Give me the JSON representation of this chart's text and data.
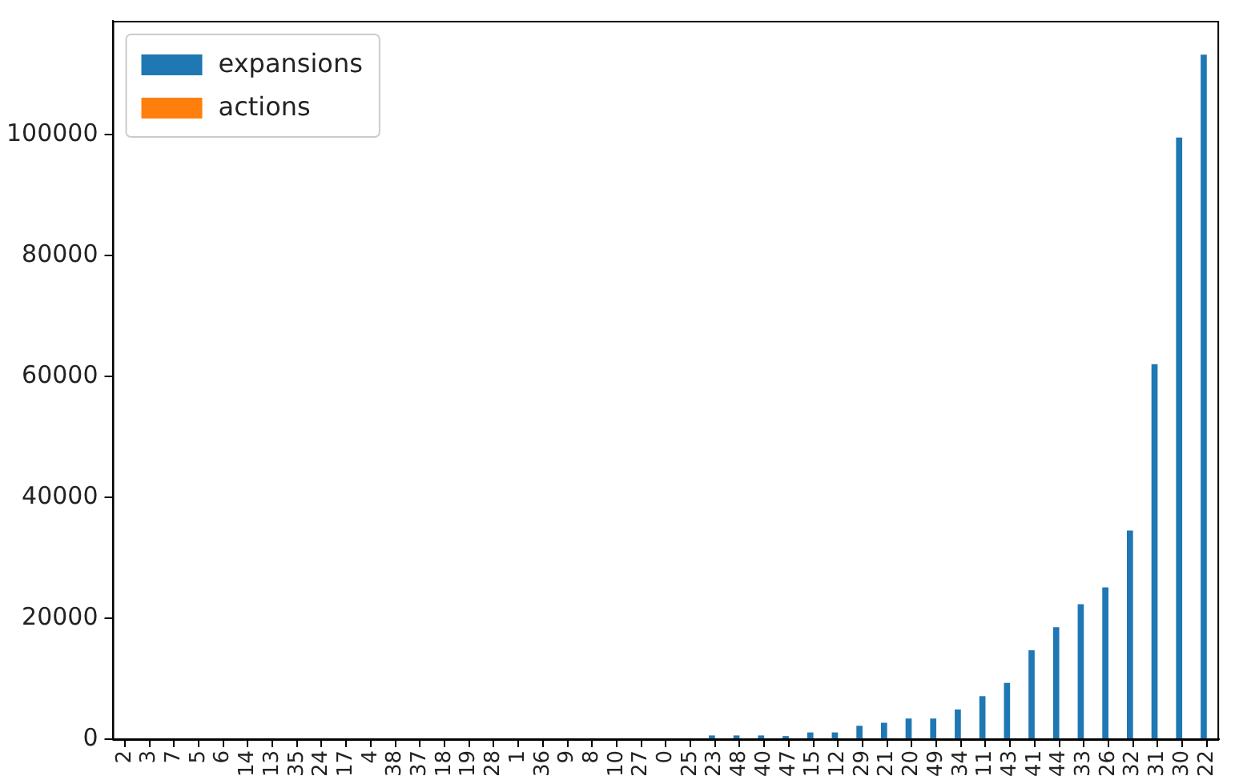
{
  "chart_data": {
    "type": "bar",
    "categories": [
      "2",
      "3",
      "7",
      "5",
      "6",
      "14",
      "13",
      "35",
      "24",
      "17",
      "4",
      "38",
      "37",
      "18",
      "19",
      "28",
      "1",
      "36",
      "9",
      "8",
      "10",
      "27",
      "0",
      "25",
      "23",
      "48",
      "40",
      "47",
      "15",
      "12",
      "29",
      "21",
      "20",
      "49",
      "34",
      "11",
      "43",
      "41",
      "44",
      "33",
      "26",
      "32",
      "31",
      "30",
      "22"
    ],
    "series": [
      {
        "name": "expansions",
        "color": "#1f77b4",
        "values": [
          0,
          0,
          0,
          0,
          0,
          0,
          0,
          0,
          0,
          0,
          0,
          0,
          0,
          0,
          0,
          0,
          0,
          0,
          0,
          0,
          0,
          0,
          0,
          0,
          600,
          600,
          600,
          500,
          1100,
          1100,
          2200,
          2700,
          3400,
          3400,
          4900,
          7100,
          9300,
          14700,
          18500,
          22300,
          25100,
          34500,
          62000,
          99500,
          113200
        ]
      },
      {
        "name": "actions",
        "color": "#ff7f0e",
        "values": [
          0,
          0,
          0,
          0,
          0,
          0,
          0,
          0,
          0,
          0,
          0,
          0,
          0,
          0,
          0,
          0,
          0,
          0,
          0,
          0,
          0,
          0,
          0,
          0,
          0,
          0,
          0,
          0,
          0,
          0,
          0,
          0,
          0,
          0,
          0,
          0,
          0,
          0,
          0,
          0,
          0,
          0,
          0,
          0,
          0
        ]
      }
    ],
    "ylim": [
      0,
      118800
    ],
    "yticks": [
      0,
      20000,
      40000,
      60000,
      80000,
      100000
    ],
    "grid": false,
    "legend": "top left"
  }
}
